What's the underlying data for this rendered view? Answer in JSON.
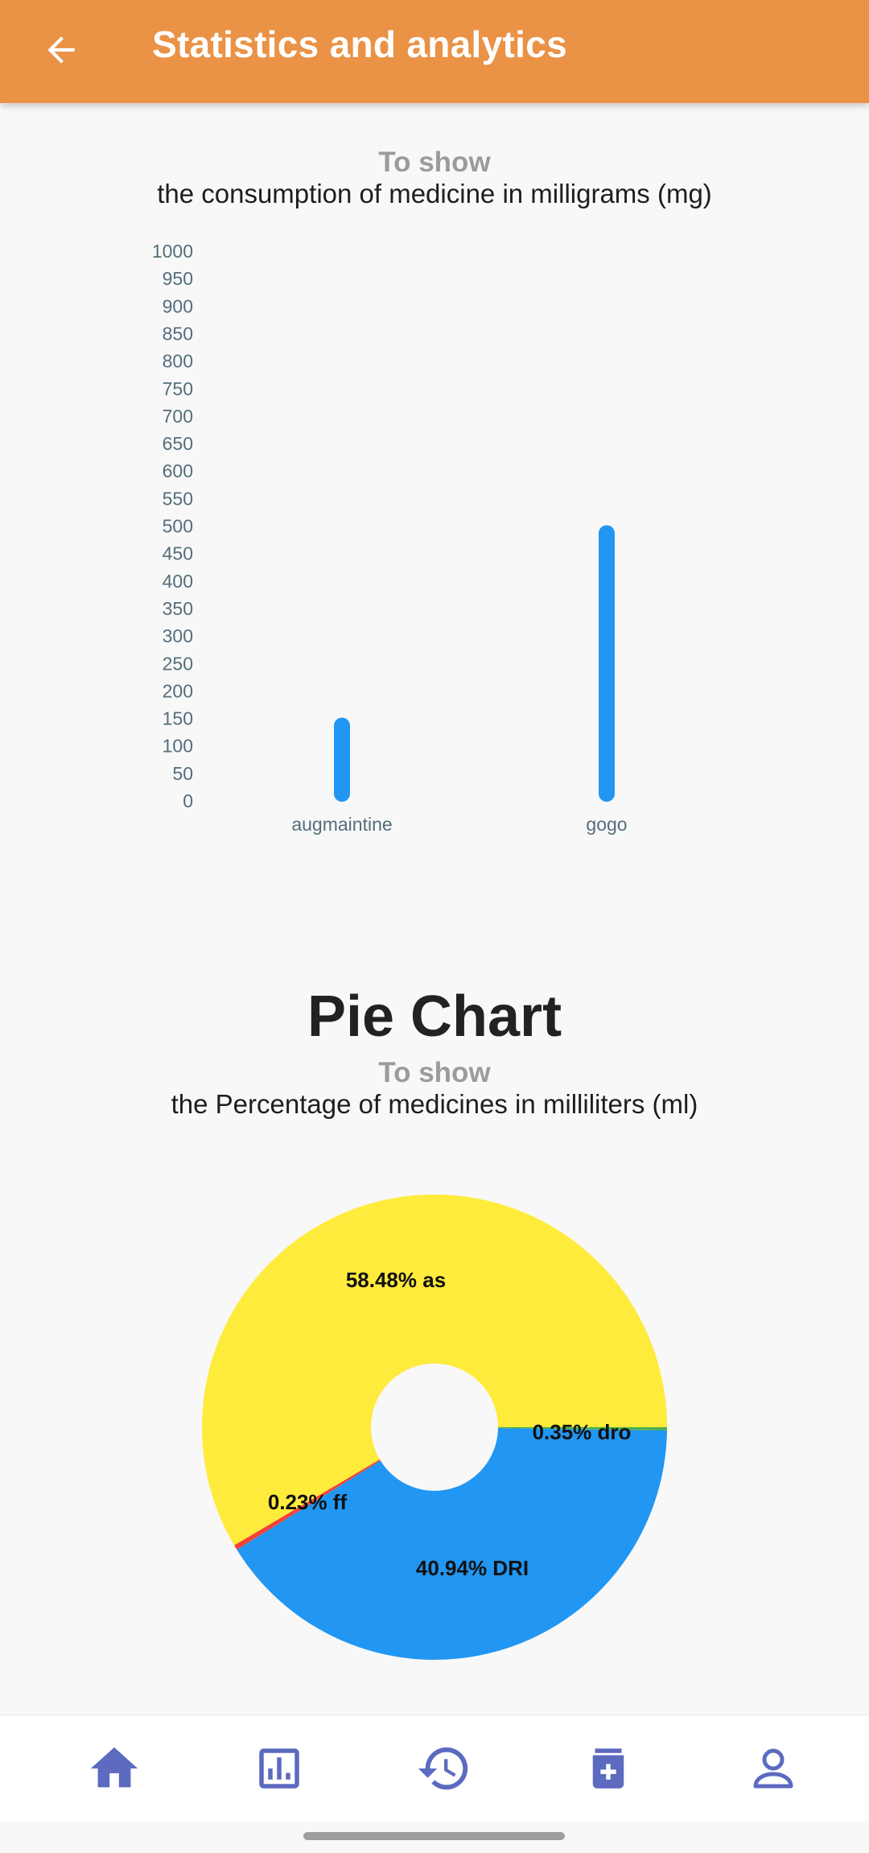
{
  "header": {
    "title": "Statistics and analytics",
    "back_icon": "arrow-left-icon"
  },
  "bar_section": {
    "subtitle": "To show",
    "caption": "the consumption of medicine in milligrams (mg)"
  },
  "pie_section": {
    "heading": "Pie Chart",
    "subtitle": "To show",
    "caption": "the Percentage of medicines in milliliters (ml)"
  },
  "colors": {
    "appbar": "#ea9245",
    "bar": "#2196f3",
    "pie_yellow": "#ffeb3b",
    "pie_blue": "#2196f3",
    "pie_red": "#f44336",
    "pie_green": "#4caf50",
    "nav_icon": "#5c6bc0"
  },
  "chart_data": [
    {
      "type": "bar",
      "categories": [
        "augmaintine",
        "gogo"
      ],
      "values": [
        150,
        500
      ],
      "ylim": [
        0,
        1000
      ],
      "yticks": [
        0,
        50,
        100,
        150,
        200,
        250,
        300,
        350,
        400,
        450,
        500,
        550,
        600,
        650,
        700,
        750,
        800,
        850,
        900,
        950,
        1000
      ],
      "grid": false,
      "legend": "none"
    },
    {
      "type": "pie",
      "donut": true,
      "slices": [
        {
          "name": "as",
          "value": 58.48,
          "label": "58.48% as",
          "color": "#ffeb3b"
        },
        {
          "name": "dro",
          "value": 0.35,
          "label": "0.35% dro",
          "color": "#f44336"
        },
        {
          "name": "DRI",
          "value": 40.94,
          "label": "40.94% DRI",
          "color": "#2196f3"
        },
        {
          "name": "ff",
          "value": 0.23,
          "label": "0.23% ff",
          "color": "#4caf50"
        }
      ]
    }
  ],
  "bottom_nav": {
    "items": [
      {
        "icon": "home-icon"
      },
      {
        "icon": "bar-chart-icon"
      },
      {
        "icon": "history-icon"
      },
      {
        "icon": "medicine-icon"
      },
      {
        "icon": "profile-icon"
      }
    ]
  }
}
